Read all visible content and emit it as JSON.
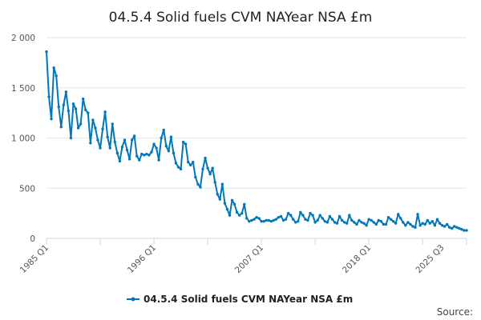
{
  "chart_data": {
    "type": "line",
    "title": "04.5.4 Solid fuels CVM NAYear NSA £m",
    "xlabel": "",
    "ylabel": "",
    "ylim": [
      0,
      2000
    ],
    "y_ticks": [
      0,
      500,
      1000,
      1500,
      2000
    ],
    "y_tick_labels": [
      "0",
      "500",
      "1 000",
      "1 500",
      "2 000"
    ],
    "x_range": [
      "1985 Q1",
      "2025 Q3"
    ],
    "x_ticks": [
      {
        "label": "1985 Q1",
        "index": 0
      },
      {
        "label": "1996 Q1",
        "index": 44
      },
      {
        "label": "2007 Q1",
        "index": 88
      },
      {
        "label": "2018 Q1",
        "index": 132
      },
      {
        "label": "2025 Q3",
        "index": 162
      }
    ],
    "legend": "bottom-center",
    "series": [
      {
        "name": "04.5.4 Solid fuels CVM NAYear NSA £m",
        "color": "#0077bb",
        "values": [
          1860,
          1410,
          1190,
          1700,
          1620,
          1310,
          1110,
          1330,
          1460,
          1270,
          1000,
          1340,
          1290,
          1100,
          1140,
          1390,
          1280,
          1250,
          950,
          1180,
          1100,
          980,
          900,
          1090,
          1260,
          1010,
          900,
          1140,
          960,
          850,
          770,
          910,
          980,
          880,
          790,
          980,
          1020,
          820,
          780,
          840,
          830,
          840,
          830,
          860,
          940,
          900,
          780,
          1000,
          1080,
          920,
          870,
          1010,
          850,
          750,
          710,
          690,
          960,
          940,
          760,
          730,
          760,
          610,
          540,
          510,
          690,
          800,
          700,
          640,
          700,
          560,
          440,
          390,
          540,
          350,
          290,
          230,
          380,
          340,
          260,
          230,
          250,
          340,
          200,
          170,
          180,
          190,
          210,
          200,
          170,
          170,
          180,
          180,
          170,
          180,
          190,
          210,
          220,
          180,
          190,
          250,
          230,
          190,
          160,
          170,
          260,
          230,
          190,
          180,
          250,
          230,
          160,
          180,
          230,
          200,
          170,
          160,
          220,
          190,
          160,
          150,
          220,
          180,
          160,
          150,
          230,
          180,
          160,
          140,
          180,
          160,
          150,
          130,
          190,
          180,
          160,
          140,
          180,
          170,
          140,
          140,
          210,
          190,
          170,
          150,
          240,
          200,
          160,
          130,
          160,
          140,
          120,
          110,
          240,
          130,
          150,
          140,
          180,
          150,
          170,
          130,
          190,
          150,
          130,
          120,
          140,
          110,
          100,
          120,
          110,
          100,
          90,
          80,
          80
        ]
      }
    ],
    "source_label": "Source:"
  }
}
